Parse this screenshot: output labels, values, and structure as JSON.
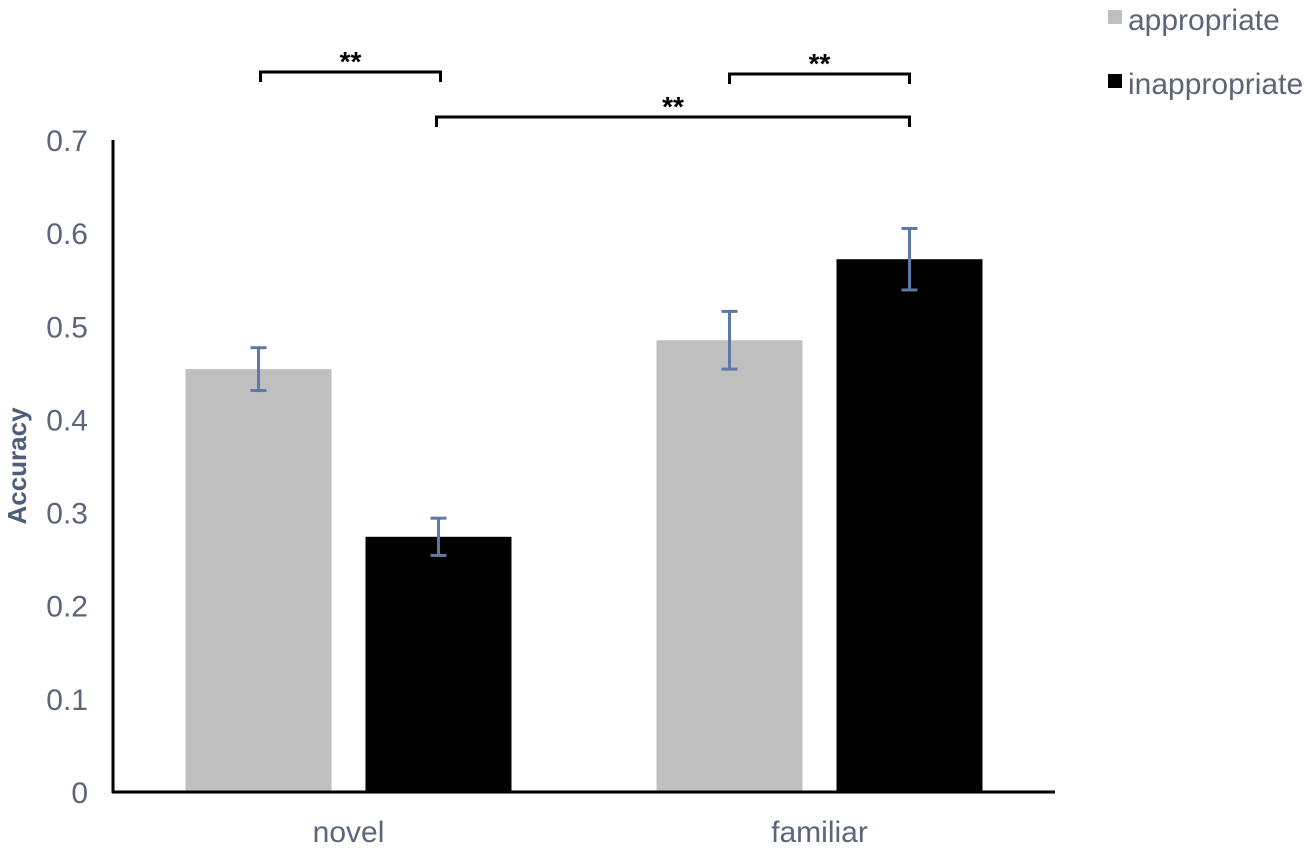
{
  "chart_data": {
    "type": "bar",
    "ylabel": "Accuracy",
    "xlabel": "",
    "ylim": [
      0,
      0.7
    ],
    "yticks": [
      0,
      0.1,
      0.2,
      0.3,
      0.4,
      0.5,
      0.6,
      0.7
    ],
    "yticks_labels": [
      "0",
      "0.1",
      "0.2",
      "0.3",
      "0.4",
      "0.5",
      "0.6",
      "0.7"
    ],
    "categories": [
      "novel",
      "familiar"
    ],
    "series": [
      {
        "name": "appropriate",
        "color": "#bfbfbf",
        "values": [
          0.454,
          0.485
        ],
        "errors": [
          0.023,
          0.031
        ]
      },
      {
        "name": "inappropriate",
        "color": "#000000",
        "values": [
          0.274,
          0.572
        ],
        "errors": [
          0.02,
          0.033
        ]
      }
    ],
    "legend_position": "top-right",
    "grid": false,
    "error_bar_color": "#5b7aa5",
    "significance": [
      {
        "label": "**",
        "from": {
          "category": 0,
          "series": 0
        },
        "to": {
          "category": 0,
          "series": 1
        }
      },
      {
        "label": "**",
        "from": {
          "category": 1,
          "series": 0
        },
        "to": {
          "category": 1,
          "series": 1
        }
      },
      {
        "label": "**",
        "from": {
          "category": 0,
          "series": 1
        },
        "to": {
          "category": 1,
          "series": 1
        }
      }
    ]
  }
}
